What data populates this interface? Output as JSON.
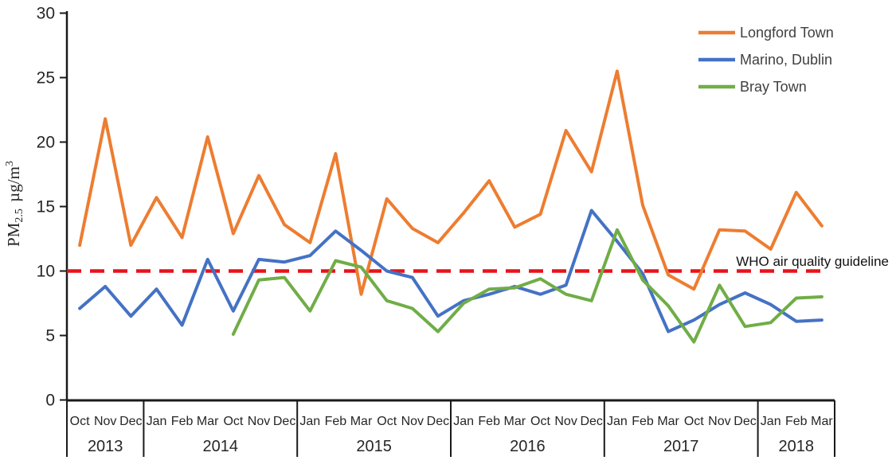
{
  "chart_data": {
    "type": "line",
    "title": "",
    "ylabel": {
      "prefix": "PM",
      "sub": "2.5",
      "mid": " µg/m",
      "sup": "3"
    },
    "ylim": [
      0,
      30
    ],
    "yticks": [
      0,
      5,
      10,
      15,
      20,
      25,
      30
    ],
    "grid": false,
    "legend_position": "top-right",
    "x_groups": [
      {
        "year": "2013",
        "months": [
          "Oct",
          "Nov",
          "Dec"
        ]
      },
      {
        "year": "2014",
        "months": [
          "Jan",
          "Feb",
          "Mar",
          "Oct",
          "Nov",
          "Dec"
        ]
      },
      {
        "year": "2015",
        "months": [
          "Jan",
          "Feb",
          "Mar",
          "Oct",
          "Nov",
          "Dec"
        ]
      },
      {
        "year": "2016",
        "months": [
          "Jan",
          "Feb",
          "Mar",
          "Oct",
          "Nov",
          "Dec"
        ]
      },
      {
        "year": "2017",
        "months": [
          "Jan",
          "Feb",
          "Mar",
          "Oct",
          "Nov",
          "Dec"
        ]
      },
      {
        "year": "2018",
        "months": [
          "Jan",
          "Feb",
          "Mar"
        ]
      }
    ],
    "series": [
      {
        "name": "Longford Town",
        "color": "#ED7D31",
        "values": [
          12.0,
          21.8,
          12.0,
          15.7,
          12.6,
          20.4,
          12.9,
          17.4,
          13.6,
          12.2,
          19.1,
          8.2,
          15.6,
          13.3,
          12.2,
          14.5,
          17.0,
          13.4,
          14.4,
          20.9,
          17.7,
          25.5,
          15.1,
          9.7,
          8.6,
          13.2,
          13.1,
          11.7,
          16.1,
          13.5
        ]
      },
      {
        "name": "Marino, Dublin",
        "color": "#4472C4",
        "values": [
          7.1,
          8.8,
          6.5,
          8.6,
          5.8,
          10.9,
          6.9,
          10.9,
          10.7,
          11.2,
          13.1,
          11.6,
          10.0,
          9.5,
          6.5,
          7.7,
          8.2,
          8.8,
          8.2,
          8.9,
          14.7,
          12.3,
          9.8,
          5.3,
          6.2,
          7.4,
          8.3,
          7.4,
          6.1,
          6.2
        ]
      },
      {
        "name": "Bray Town",
        "color": "#70AD47",
        "values": [
          null,
          null,
          null,
          null,
          null,
          null,
          5.1,
          9.3,
          9.5,
          6.9,
          10.8,
          10.3,
          7.7,
          7.1,
          5.3,
          7.5,
          8.6,
          8.7,
          9.4,
          8.2,
          7.7,
          13.2,
          9.3,
          7.3,
          4.5,
          8.9,
          5.7,
          6.0,
          7.9,
          8.0
        ]
      }
    ],
    "guideline": {
      "label": "WHO air quality guideline",
      "value": 10,
      "color": "#E8131B"
    },
    "axis_color": "#1a1a1a",
    "text_color": "#262626"
  }
}
